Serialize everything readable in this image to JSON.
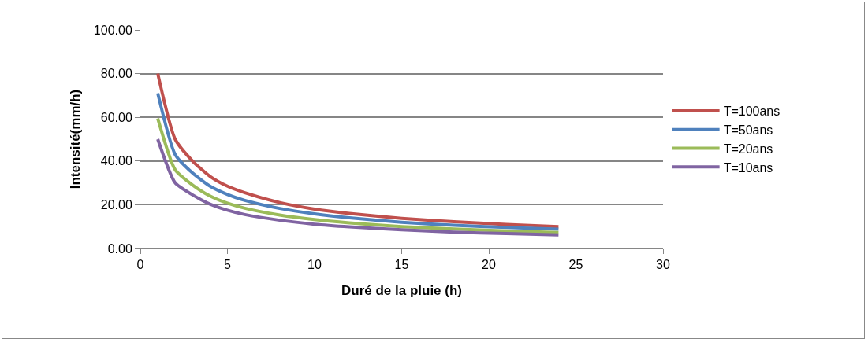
{
  "chart_data": {
    "type": "line",
    "xlabel": "Duré de la pluie (h)",
    "ylabel": "Intensité(mm/h)",
    "x": [
      1,
      2,
      3,
      4,
      5,
      6,
      8,
      10,
      12,
      15,
      18,
      21,
      24
    ],
    "series": [
      {
        "name": "T=100ans",
        "color": "#c0504d",
        "values": [
          80,
          50,
          40,
          33,
          28.5,
          25.5,
          21,
          18,
          16,
          13.8,
          12.2,
          11,
          10
        ]
      },
      {
        "name": "T=50ans",
        "color": "#4f81bd",
        "values": [
          71,
          43,
          34.5,
          28.5,
          24.7,
          22,
          18.3,
          15.8,
          14,
          12,
          10.6,
          9.6,
          8.8
        ]
      },
      {
        "name": "T=20ans",
        "color": "#9bbb59",
        "values": [
          59.5,
          36,
          29,
          24,
          20.7,
          18.4,
          15.3,
          13.2,
          11.7,
          10,
          8.9,
          8,
          7.3
        ]
      },
      {
        "name": "T=10ans",
        "color": "#8064a2",
        "values": [
          50,
          30,
          24.5,
          20.3,
          17.5,
          15.5,
          12.9,
          11.1,
          9.9,
          8.5,
          7.5,
          6.8,
          6.2
        ]
      }
    ],
    "xlim": [
      0,
      30
    ],
    "xticks": [
      0,
      5,
      10,
      15,
      20,
      25,
      30
    ],
    "ylim": [
      0,
      100
    ],
    "yticks": [
      {
        "value": 0,
        "label": "0.00"
      },
      {
        "value": 20,
        "label": "20.00"
      },
      {
        "value": 40,
        "label": "40.00"
      },
      {
        "value": 60,
        "label": "60.00"
      },
      {
        "value": 80,
        "label": "80.00"
      },
      {
        "value": 100,
        "label": "100.00"
      }
    ],
    "grid": "y",
    "legend": "right",
    "marker": "none",
    "line_style": "solid"
  }
}
